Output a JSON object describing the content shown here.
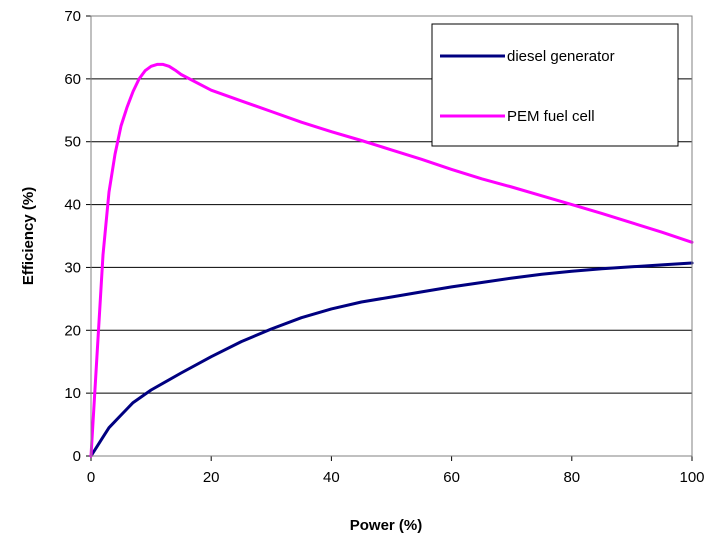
{
  "chart_data": {
    "type": "line",
    "title": "",
    "xlabel": "Power (%)",
    "ylabel": "Efficiency (%)",
    "xlim": [
      0,
      100
    ],
    "ylim": [
      0,
      70
    ],
    "xticks": [
      0,
      20,
      40,
      60,
      80,
      100
    ],
    "yticks": [
      0,
      10,
      20,
      30,
      40,
      50,
      60,
      70
    ],
    "grid": "horizontal",
    "legend": "top-right",
    "series": [
      {
        "name": "diesel generator",
        "color": "#000080",
        "x": [
          0,
          1,
          2,
          3,
          5,
          7,
          10,
          15,
          20,
          25,
          30,
          35,
          40,
          45,
          50,
          55,
          60,
          65,
          70,
          75,
          80,
          85,
          90,
          95,
          100
        ],
        "y": [
          0,
          1.5,
          3,
          4.5,
          6.5,
          8.5,
          10.5,
          13.2,
          15.8,
          18.2,
          20.2,
          22,
          23.4,
          24.5,
          25.3,
          26.1,
          26.9,
          27.6,
          28.3,
          28.9,
          29.4,
          29.8,
          30.1,
          30.4,
          30.7
        ]
      },
      {
        "name": "PEM fuel cell",
        "color": "#ff00ff",
        "x": [
          0,
          1,
          2,
          3,
          4,
          5,
          6,
          7,
          8,
          9,
          10,
          11,
          12,
          13,
          14,
          15,
          20,
          25,
          30,
          35,
          40,
          45,
          50,
          55,
          60,
          65,
          70,
          75,
          80,
          85,
          90,
          95,
          100
        ],
        "y": [
          0,
          16,
          32,
          42,
          48,
          52.5,
          55.5,
          58,
          60,
          61.3,
          62,
          62.3,
          62.3,
          62,
          61.4,
          60.7,
          58.2,
          56.5,
          54.8,
          53.1,
          51.6,
          50.2,
          48.7,
          47.2,
          45.6,
          44.1,
          42.8,
          41.4,
          40,
          38.6,
          37.1,
          35.6,
          34
        ]
      }
    ]
  }
}
